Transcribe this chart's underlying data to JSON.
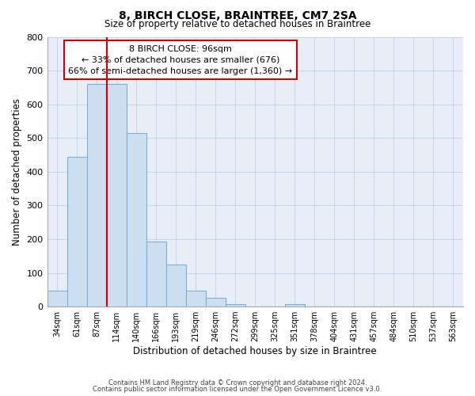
{
  "title": "8, BIRCH CLOSE, BRAINTREE, CM7 2SA",
  "subtitle": "Size of property relative to detached houses in Braintree",
  "xlabel": "Distribution of detached houses by size in Braintree",
  "ylabel": "Number of detached properties",
  "bin_labels": [
    "34sqm",
    "61sqm",
    "87sqm",
    "114sqm",
    "140sqm",
    "166sqm",
    "193sqm",
    "219sqm",
    "246sqm",
    "272sqm",
    "299sqm",
    "325sqm",
    "351sqm",
    "378sqm",
    "404sqm",
    "431sqm",
    "457sqm",
    "484sqm",
    "510sqm",
    "537sqm",
    "563sqm"
  ],
  "bar_values": [
    48,
    443,
    660,
    660,
    515,
    193,
    125,
    48,
    25,
    8,
    0,
    0,
    8,
    0,
    0,
    0,
    0,
    0,
    0,
    0,
    0
  ],
  "bar_color": "#ccdff0",
  "bar_edge_color": "#7bafd4",
  "ylim": [
    0,
    800
  ],
  "yticks": [
    0,
    100,
    200,
    300,
    400,
    500,
    600,
    700,
    800
  ],
  "property_line_color": "#cc0000",
  "annotation_title": "8 BIRCH CLOSE: 96sqm",
  "annotation_line1": "← 33% of detached houses are smaller (676)",
  "annotation_line2": "66% of semi-detached houses are larger (1,360) →",
  "annotation_box_color": "#ffffff",
  "annotation_box_edge": "#cc0000",
  "footer_line1": "Contains HM Land Registry data © Crown copyright and database right 2024.",
  "footer_line2": "Contains public sector information licensed under the Open Government Licence v3.0.",
  "grid_color": "#c8d4e8",
  "background_color": "#e8eef8"
}
